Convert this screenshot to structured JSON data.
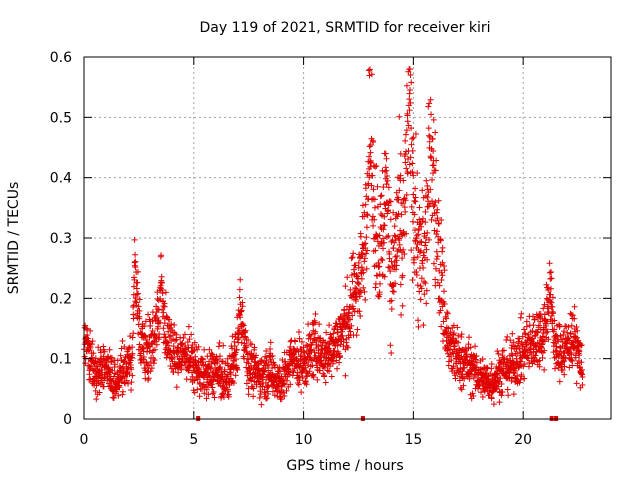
{
  "chart_data": {
    "type": "scatter",
    "title": "Day 119 of 2021, SRMTID for receiver kiri",
    "xlabel": "GPS time / hours",
    "ylabel": "SRMTID / TECUs",
    "xlim": [
      0,
      24
    ],
    "ylim": [
      0,
      0.6
    ],
    "x_ticks": [
      0,
      5,
      10,
      15,
      20
    ],
    "x_tick_labels": [
      "0",
      "5",
      "10",
      "15",
      "20"
    ],
    "y_ticks": [
      0,
      0.1,
      0.2,
      0.3,
      0.4,
      0.5,
      0.6
    ],
    "y_tick_labels": [
      "0",
      "0.1",
      "0.2",
      "0.3",
      "0.4",
      "0.5",
      "0.6"
    ],
    "grid": true,
    "marker": "+",
    "series_color": "#e00000",
    "series": [
      {
        "name": "SRMTID",
        "x": [
          0.0,
          0.3,
          0.6,
          1.0,
          1.4,
          1.8,
          2.2,
          2.3,
          2.6,
          3.0,
          3.3,
          3.5,
          3.8,
          4.2,
          4.6,
          5.0,
          5.5,
          6.0,
          6.5,
          7.0,
          7.1,
          7.5,
          8.0,
          8.5,
          9.0,
          9.5,
          10.0,
          10.5,
          11.0,
          11.5,
          12.0,
          12.3,
          12.6,
          12.8,
          13.0,
          13.2,
          13.5,
          13.8,
          14.0,
          14.3,
          14.5,
          14.8,
          15.0,
          15.3,
          15.6,
          15.8,
          16.0,
          16.3,
          16.6,
          17.0,
          17.5,
          18.0,
          18.5,
          19.0,
          19.5,
          20.0,
          20.5,
          21.0,
          21.2,
          21.5,
          22.0,
          22.3,
          22.7
        ],
        "y": [
          0.14,
          0.1,
          0.07,
          0.09,
          0.06,
          0.08,
          0.1,
          0.25,
          0.12,
          0.11,
          0.15,
          0.22,
          0.13,
          0.1,
          0.11,
          0.09,
          0.07,
          0.08,
          0.06,
          0.12,
          0.19,
          0.09,
          0.07,
          0.08,
          0.06,
          0.1,
          0.09,
          0.12,
          0.1,
          0.13,
          0.16,
          0.21,
          0.24,
          0.3,
          0.48,
          0.35,
          0.27,
          0.4,
          0.22,
          0.33,
          0.26,
          0.51,
          0.38,
          0.25,
          0.3,
          0.47,
          0.34,
          0.22,
          0.12,
          0.1,
          0.09,
          0.07,
          0.06,
          0.08,
          0.09,
          0.11,
          0.13,
          0.15,
          0.22,
          0.11,
          0.12,
          0.14,
          0.08
        ],
        "spread": [
          0.035,
          0.03,
          0.025,
          0.03,
          0.025,
          0.03,
          0.03,
          0.04,
          0.035,
          0.035,
          0.04,
          0.04,
          0.035,
          0.03,
          0.03,
          0.03,
          0.025,
          0.03,
          0.025,
          0.035,
          0.04,
          0.03,
          0.025,
          0.03,
          0.025,
          0.03,
          0.03,
          0.035,
          0.03,
          0.035,
          0.045,
          0.05,
          0.06,
          0.07,
          0.08,
          0.08,
          0.08,
          0.09,
          0.08,
          0.09,
          0.09,
          0.1,
          0.1,
          0.09,
          0.09,
          0.1,
          0.09,
          0.07,
          0.04,
          0.035,
          0.03,
          0.025,
          0.025,
          0.03,
          0.03,
          0.035,
          0.035,
          0.04,
          0.05,
          0.03,
          0.035,
          0.035,
          0.03
        ],
        "density_per_hour": 120,
        "x_range": [
          0,
          22.7
        ]
      }
    ],
    "gap_markers_x": [
      5.2,
      12.7,
      21.3,
      21.5
    ]
  }
}
